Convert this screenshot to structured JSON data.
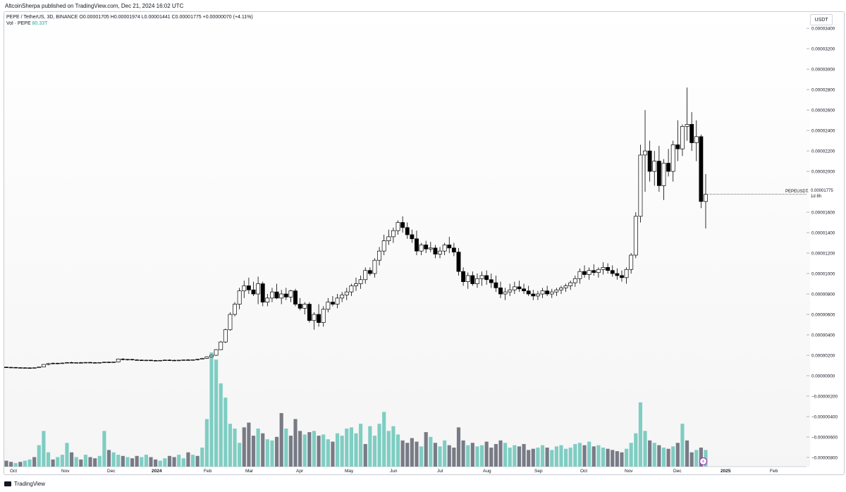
{
  "header": {
    "publisher": "AltcoinSherpa published on TradingView.com, Dec 21, 2024 16:02 UTC"
  },
  "legend": {
    "symbol": "PEPE / TetherUS, 3D, BINANCE",
    "open": "O0.00001705",
    "high": "H0.00001974",
    "low": "L0.00001441",
    "close": "C0.00001775",
    "change": "+0.00000070 (+4.11%)",
    "volume_label": "Vol · PEPE",
    "volume_value": "80.33T"
  },
  "price_scale": {
    "currency": "USDT",
    "last_symbol": "PEPEUSDT",
    "last_price": "0.00001775",
    "countdown": "1d 8h"
  },
  "footer": {
    "brand": "TradingView"
  },
  "colors": {
    "up_volume": "#7fcdc3",
    "down_volume": "#787b86",
    "candle": "#000000",
    "last_price_line": "#131722"
  },
  "icons": {
    "alert": "lightning-icon"
  },
  "chart_data": {
    "type": "candlestick",
    "interval": "3D",
    "exchange": "BINANCE",
    "x_tick_labels": [
      "Oct",
      "Nov",
      "Dec",
      "2024",
      "Feb",
      "Mar",
      "Apr",
      "May",
      "Jun",
      "Jul",
      "Aug",
      "Sep",
      "Oct",
      "Nov",
      "Dec",
      "2025",
      "Feb"
    ],
    "y_tick_labels": [
      "0.00003400",
      "0.00003200",
      "0.00003000",
      "0.00002800",
      "0.00002600",
      "0.00002400",
      "0.00002200",
      "0.00002000",
      "0.00001800",
      "0.00001600",
      "0.00001400",
      "0.00001200",
      "0.00001000",
      "0.00000800",
      "0.00000600",
      "0.00000400",
      "0.00000200",
      "0.00000000",
      "−0.00000200",
      "−0.00000400",
      "−0.00000600",
      "−0.00000800"
    ],
    "ylim": [
      -8.9e-06,
      3.56e-05
    ],
    "candles_ohlc": [
      [
        8.4e-07,
        8.8e-07,
        8e-07,
        8.2e-07
      ],
      [
        8.2e-07,
        8.6e-07,
        7.8e-07,
        8.1e-07
      ],
      [
        8.1e-07,
        8.4e-07,
        7.7e-07,
        7.9e-07
      ],
      [
        7.9e-07,
        8.2e-07,
        7.5e-07,
        7.8e-07
      ],
      [
        7.8e-07,
        8.1e-07,
        7.4e-07,
        7.7e-07
      ],
      [
        7.7e-07,
        8e-07,
        7.3e-07,
        7.6e-07
      ],
      [
        7.6e-07,
        8e-07,
        7.4e-07,
        7.8e-07
      ],
      [
        7.8e-07,
        8.6e-07,
        7.6e-07,
        8.5e-07
      ],
      [
        8.5e-07,
        1.12e-06,
        8.3e-07,
        1.1e-06
      ],
      [
        1.1e-06,
        1.25e-06,
        1.02e-06,
        1.18e-06
      ],
      [
        1.18e-06,
        1.3e-06,
        1.12e-06,
        1.22e-06
      ],
      [
        1.22e-06,
        1.28e-06,
        1.15e-06,
        1.19e-06
      ],
      [
        1.19e-06,
        1.27e-06,
        1.16e-06,
        1.24e-06
      ],
      [
        1.24e-06,
        1.33e-06,
        1.2e-06,
        1.29e-06
      ],
      [
        1.29e-06,
        1.36e-06,
        1.22e-06,
        1.25e-06
      ],
      [
        1.25e-06,
        1.32e-06,
        1.21e-06,
        1.28e-06
      ],
      [
        1.28e-06,
        1.34e-06,
        1.24e-06,
        1.27e-06
      ],
      [
        1.27e-06,
        1.33e-06,
        1.23e-06,
        1.3e-06
      ],
      [
        1.3e-06,
        1.35e-06,
        1.25e-06,
        1.28e-06
      ],
      [
        1.28e-06,
        1.32e-06,
        1.23e-06,
        1.26e-06
      ],
      [
        1.26e-06,
        1.31e-06,
        1.22e-06,
        1.29e-06
      ],
      [
        1.29e-06,
        1.36e-06,
        1.25e-06,
        1.33e-06
      ],
      [
        1.33e-06,
        1.38e-06,
        1.28e-06,
        1.31e-06
      ],
      [
        1.31e-06,
        1.36e-06,
        1.27e-06,
        1.34e-06
      ],
      [
        1.34e-06,
        1.68e-06,
        1.3e-06,
        1.63e-06
      ],
      [
        1.63e-06,
        1.72e-06,
        1.5e-06,
        1.58e-06
      ],
      [
        1.58e-06,
        1.65e-06,
        1.48e-06,
        1.6e-06
      ],
      [
        1.6e-06,
        1.64e-06,
        1.5e-06,
        1.55e-06
      ],
      [
        1.55e-06,
        1.61e-06,
        1.48e-06,
        1.53e-06
      ],
      [
        1.53e-06,
        1.58e-06,
        1.46e-06,
        1.5e-06
      ],
      [
        1.5e-06,
        1.56e-06,
        1.44e-06,
        1.52e-06
      ],
      [
        1.52e-06,
        1.57e-06,
        1.46e-06,
        1.49e-06
      ],
      [
        1.49e-06,
        1.54e-06,
        1.43e-06,
        1.47e-06
      ],
      [
        1.47e-06,
        1.52e-06,
        1.42e-06,
        1.5e-06
      ],
      [
        1.5e-06,
        1.58e-06,
        1.45e-06,
        1.53e-06
      ],
      [
        1.53e-06,
        1.6e-06,
        1.47e-06,
        1.51e-06
      ],
      [
        1.51e-06,
        1.56e-06,
        1.44e-06,
        1.48e-06
      ],
      [
        1.48e-06,
        1.55e-06,
        1.43e-06,
        1.52e-06
      ],
      [
        1.52e-06,
        1.58e-06,
        1.47e-06,
        1.55e-06
      ],
      [
        1.55e-06,
        1.62e-06,
        1.5e-06,
        1.53e-06
      ],
      [
        1.53e-06,
        1.58e-06,
        1.49e-06,
        1.56e-06
      ],
      [
        1.56e-06,
        1.65e-06,
        1.5e-06,
        1.62e-06
      ],
      [
        1.62e-06,
        1.75e-06,
        1.6e-06,
        1.7e-06
      ],
      [
        1.7e-06,
        1.9e-06,
        1.65e-06,
        1.85e-06
      ],
      [
        1.85e-06,
        2.05e-06,
        1.8e-06,
        2e-06
      ],
      [
        2e-06,
        2.6e-06,
        1.95e-06,
        2.55e-06
      ],
      [
        2.55e-06,
        3.4e-06,
        2.5e-06,
        3.3e-06
      ],
      [
        3.3e-06,
        4.6e-06,
        3.2e-06,
        4.5e-06
      ],
      [
        4.5e-06,
        6.2e-06,
        4.4e-06,
        6e-06
      ],
      [
        6e-06,
        7.2e-06,
        5.8e-06,
        7e-06
      ],
      [
        7e-06,
        8.6e-06,
        6.5e-06,
        8.3e-06
      ],
      [
        8.3e-06,
        9.3e-06,
        7.6e-06,
        8.8e-06
      ],
      [
        8.8e-06,
        9.6e-06,
        8e-06,
        8.4e-06
      ],
      [
        8.4e-06,
        9.2e-06,
        7.8e-06,
        8e-06
      ],
      [
        8e-06,
        9.7e-06,
        7e-06,
        9e-06
      ],
      [
        9e-06,
        9.2e-06,
        6.8e-06,
        7.2e-06
      ],
      [
        7.2e-06,
        8e-06,
        6.8e-06,
        7.6e-06
      ],
      [
        7.6e-06,
        8.6e-06,
        7.2e-06,
        8.2e-06
      ],
      [
        8.2e-06,
        9e-06,
        7.5e-06,
        7.6e-06
      ],
      [
        7.6e-06,
        8.4e-06,
        7e-06,
        8e-06
      ],
      [
        8e-06,
        8.6e-06,
        7.4e-06,
        7.7e-06
      ],
      [
        7.7e-06,
        8.4e-06,
        7.2e-06,
        8.3e-06
      ],
      [
        8.3e-06,
        8.5e-06,
        6.8e-06,
        7e-06
      ],
      [
        7e-06,
        7.6e-06,
        6.4e-06,
        6.6e-06
      ],
      [
        6.6e-06,
        7.2e-06,
        6e-06,
        7e-06
      ],
      [
        7e-06,
        7.2e-06,
        5.2e-06,
        5.4e-06
      ],
      [
        5.4e-06,
        6.2e-06,
        4.5e-06,
        6e-06
      ],
      [
        6e-06,
        7e-06,
        4.8e-06,
        5.2e-06
      ],
      [
        5.2e-06,
        6.8e-06,
        4.8e-06,
        6.5e-06
      ],
      [
        6.5e-06,
        7.6e-06,
        6.2e-06,
        7.2e-06
      ],
      [
        7.2e-06,
        7.8e-06,
        6.8e-06,
        7e-06
      ],
      [
        7e-06,
        8e-06,
        6.6e-06,
        7.6e-06
      ],
      [
        7.6e-06,
        8.2e-06,
        7.2e-06,
        7.9e-06
      ],
      [
        7.9e-06,
        8.6e-06,
        7.4e-06,
        8.2e-06
      ],
      [
        8.2e-06,
        9e-06,
        7.8e-06,
        8.8e-06
      ],
      [
        8.8e-06,
        9.6e-06,
        8.3e-06,
        9e-06
      ],
      [
        9e-06,
        9.8e-06,
        8.5e-06,
        9.4e-06
      ],
      [
        9.4e-06,
        1.06e-05,
        9e-06,
        1.03e-05
      ],
      [
        1.03e-05,
        1.06e-05,
        9.8e-06,
        1e-05
      ],
      [
        1e-05,
        1.15e-05,
        9.6e-06,
        1.13e-05
      ],
      [
        1.13e-05,
        1.26e-05,
        1.08e-05,
        1.22e-05
      ],
      [
        1.22e-05,
        1.38e-05,
        1.18e-05,
        1.32e-05
      ],
      [
        1.32e-05,
        1.43e-05,
        1.28e-05,
        1.36e-05
      ],
      [
        1.36e-05,
        1.45e-05,
        1.3e-05,
        1.42e-05
      ],
      [
        1.42e-05,
        1.52e-05,
        1.38e-05,
        1.5e-05
      ],
      [
        1.5e-05,
        1.56e-05,
        1.4e-05,
        1.45e-05
      ],
      [
        1.45e-05,
        1.5e-05,
        1.34e-05,
        1.38e-05
      ],
      [
        1.38e-05,
        1.43e-05,
        1.3e-05,
        1.34e-05
      ],
      [
        1.34e-05,
        1.42e-05,
        1.18e-05,
        1.22e-05
      ],
      [
        1.22e-05,
        1.3e-05,
        1.18e-05,
        1.28e-05
      ],
      [
        1.28e-05,
        1.32e-05,
        1.2e-05,
        1.24e-05
      ],
      [
        1.24e-05,
        1.31e-05,
        1.21e-05,
        1.25e-05
      ],
      [
        1.25e-05,
        1.28e-05,
        1.15e-05,
        1.19e-05
      ],
      [
        1.19e-05,
        1.26e-05,
        1.15e-05,
        1.22e-05
      ],
      [
        1.22e-05,
        1.3e-05,
        1.18e-05,
        1.28e-05
      ],
      [
        1.28e-05,
        1.36e-05,
        1.2e-05,
        1.25e-05
      ],
      [
        1.25e-05,
        1.3e-05,
        1.17e-05,
        1.21e-05
      ],
      [
        1.21e-05,
        1.25e-05,
        9.8e-06,
        1.02e-05
      ],
      [
        1.02e-05,
        1.06e-05,
        8.8e-06,
        9.2e-06
      ],
      [
        9.2e-06,
        1.01e-05,
        8.5e-06,
        9.8e-06
      ],
      [
        9.8e-06,
        1.02e-05,
        8.8e-06,
        9e-06
      ],
      [
        9e-06,
        1e-05,
        8.6e-06,
        9.5e-06
      ],
      [
        9.5e-06,
        1.02e-05,
        8.8e-06,
        9.8e-06
      ],
      [
        9.8e-06,
        1.03e-05,
        8.9e-06,
        9.4e-06
      ],
      [
        9.4e-06,
        1e-05,
        8.6e-06,
        9.1e-06
      ],
      [
        9.1e-06,
        9.8e-06,
        8.2e-06,
        8.6e-06
      ],
      [
        8.6e-06,
        9.2e-06,
        7.6e-06,
        8e-06
      ],
      [
        8e-06,
        8.6e-06,
        7.4e-06,
        8.2e-06
      ],
      [
        8.2e-06,
        9e-06,
        7.8e-06,
        8.4e-06
      ],
      [
        8.4e-06,
        9.2e-06,
        8e-06,
        8.7e-06
      ],
      [
        8.7e-06,
        9.3e-06,
        8.2e-06,
        8.5e-06
      ],
      [
        8.5e-06,
        9e-06,
        8e-06,
        8.3e-06
      ],
      [
        8.3e-06,
        8.8e-06,
        7.8e-06,
        8e-06
      ],
      [
        8e-06,
        8.4e-06,
        7.4e-06,
        7.8e-06
      ],
      [
        7.8e-06,
        8.3e-06,
        7.4e-06,
        8e-06
      ],
      [
        8e-06,
        8.6e-06,
        7.6e-06,
        8.3e-06
      ],
      [
        8.3e-06,
        8.8e-06,
        7.8e-06,
        8e-06
      ],
      [
        8e-06,
        8.5e-06,
        7.6e-06,
        8.2e-06
      ],
      [
        8.2e-06,
        8.6e-06,
        7.8e-06,
        8.4e-06
      ],
      [
        8.4e-06,
        8.8e-06,
        8e-06,
        8.6e-06
      ],
      [
        8.6e-06,
        9e-06,
        8.2e-06,
        8.8e-06
      ],
      [
        8.8e-06,
        9.3e-06,
        8.4e-06,
        9.1e-06
      ],
      [
        9.1e-06,
        9.8e-06,
        8.7e-06,
        9.5e-06
      ],
      [
        9.5e-06,
        1.05e-05,
        9e-06,
        1.02e-05
      ],
      [
        1.02e-05,
        1.08e-05,
        9.6e-06,
        9.9e-06
      ],
      [
        9.9e-06,
        1.06e-05,
        9.4e-06,
        1.03e-05
      ],
      [
        1.03e-05,
        1.09e-05,
        9.8e-06,
        1.01e-05
      ],
      [
        1.01e-05,
        1.06e-05,
        9.6e-06,
        1.04e-05
      ],
      [
        1.04e-05,
        1.11e-05,
        9.9e-06,
        1.06e-05
      ],
      [
        1.06e-05,
        1.1e-05,
        1e-05,
        1.03e-05
      ],
      [
        1.03e-05,
        1.08e-05,
        9.7e-06,
        1e-05
      ],
      [
        1e-05,
        1.05e-05,
        9.4e-06,
        9.8e-06
      ],
      [
        9.8e-06,
        1.03e-05,
        9.2e-06,
        9.6e-06
      ],
      [
        9.6e-06,
        1.06e-05,
        9e-06,
        1.04e-05
      ],
      [
        1.04e-05,
        1.2e-05,
        1e-05,
        1.18e-05
      ],
      [
        1.18e-05,
        1.6e-05,
        1.15e-05,
        1.56e-05
      ],
      [
        1.56e-05,
        2.26e-05,
        1.5e-05,
        2.16e-05
      ],
      [
        2.16e-05,
        2.6e-05,
        1.8e-05,
        2.2e-05
      ],
      [
        2.2e-05,
        2.3e-05,
        1.9e-05,
        2e-05
      ],
      [
        2e-05,
        2.2e-05,
        1.86e-05,
        2.1e-05
      ],
      [
        2.1e-05,
        2.25e-05,
        1.8e-05,
        1.86e-05
      ],
      [
        1.86e-05,
        2.12e-05,
        1.72e-05,
        2.08e-05
      ],
      [
        2.08e-05,
        2.22e-05,
        1.95e-05,
        2e-05
      ],
      [
        2e-05,
        2.3e-05,
        1.9e-05,
        2.26e-05
      ],
      [
        2.26e-05,
        2.5e-05,
        2.1e-05,
        2.22e-05
      ],
      [
        2.22e-05,
        2.46e-05,
        2.15e-05,
        2.44e-05
      ],
      [
        2.44e-05,
        2.82e-05,
        2.3e-05,
        2.46e-05
      ],
      [
        2.46e-05,
        2.58e-05,
        2.2e-05,
        2.28e-05
      ],
      [
        2.28e-05,
        2.5e-05,
        2.1e-05,
        2.34e-05
      ],
      [
        2.34e-05,
        2.36e-05,
        1.64e-05,
        1.705e-05
      ],
      [
        1.705e-05,
        1.974e-05,
        1.441e-05,
        1.775e-05
      ]
    ],
    "volume": [
      5,
      4,
      3,
      4,
      5,
      6,
      8,
      18,
      30,
      12,
      6,
      8,
      10,
      20,
      12,
      8,
      6,
      10,
      8,
      7,
      9,
      30,
      14,
      12,
      10,
      9,
      8,
      7,
      9,
      8,
      10,
      8,
      6,
      5,
      7,
      9,
      8,
      10,
      7,
      12,
      10,
      9,
      16,
      40,
      96,
      90,
      70,
      58,
      36,
      32,
      20,
      33,
      37,
      26,
      32,
      28,
      23,
      22,
      25,
      45,
      32,
      26,
      40,
      30,
      27,
      29,
      30,
      26,
      27,
      23,
      21,
      28,
      26,
      32,
      33,
      28,
      36,
      19,
      34,
      26,
      36,
      46,
      30,
      34,
      27,
      22,
      20,
      24,
      21,
      17,
      29,
      25,
      20,
      17,
      22,
      18,
      16,
      33,
      22,
      18,
      20,
      17,
      18,
      21,
      16,
      19,
      22,
      20,
      16,
      18,
      17,
      19,
      14,
      15,
      16,
      18,
      16,
      14,
      17,
      18,
      15,
      16,
      19,
      20,
      18,
      21,
      17,
      18,
      16,
      15,
      14,
      13,
      12,
      15,
      20,
      28,
      54,
      30,
      22,
      20,
      18,
      16,
      15,
      17,
      20,
      36,
      22,
      12,
      14,
      16,
      14
    ],
    "volume_up_flags": [
      0,
      0,
      1,
      0,
      1,
      1,
      0,
      1,
      1,
      1,
      0,
      1,
      1,
      1,
      0,
      1,
      0,
      1,
      0,
      0,
      1,
      1,
      0,
      1,
      1,
      0,
      1,
      0,
      0,
      1,
      1,
      0,
      0,
      1,
      1,
      0,
      0,
      1,
      1,
      0,
      1,
      0,
      1,
      1,
      1,
      1,
      1,
      1,
      1,
      1,
      1,
      0,
      0,
      0,
      1,
      0,
      1,
      1,
      0,
      0,
      1,
      0,
      0,
      0,
      1,
      0,
      1,
      0,
      1,
      1,
      0,
      1,
      1,
      1,
      1,
      1,
      1,
      0,
      1,
      1,
      1,
      1,
      1,
      1,
      1,
      0,
      0,
      0,
      0,
      1,
      0,
      1,
      0,
      1,
      1,
      0,
      0,
      0,
      0,
      1,
      0,
      1,
      1,
      0,
      0,
      0,
      0,
      1,
      1,
      1,
      0,
      0,
      0,
      0,
      1,
      1,
      0,
      1,
      1,
      1,
      1,
      1,
      1,
      1,
      0,
      1,
      0,
      1,
      1,
      0,
      0,
      0,
      0,
      1,
      1,
      1,
      1,
      1,
      0,
      1,
      0,
      1,
      0,
      1,
      0,
      1,
      0,
      0,
      1,
      0,
      1
    ]
  }
}
